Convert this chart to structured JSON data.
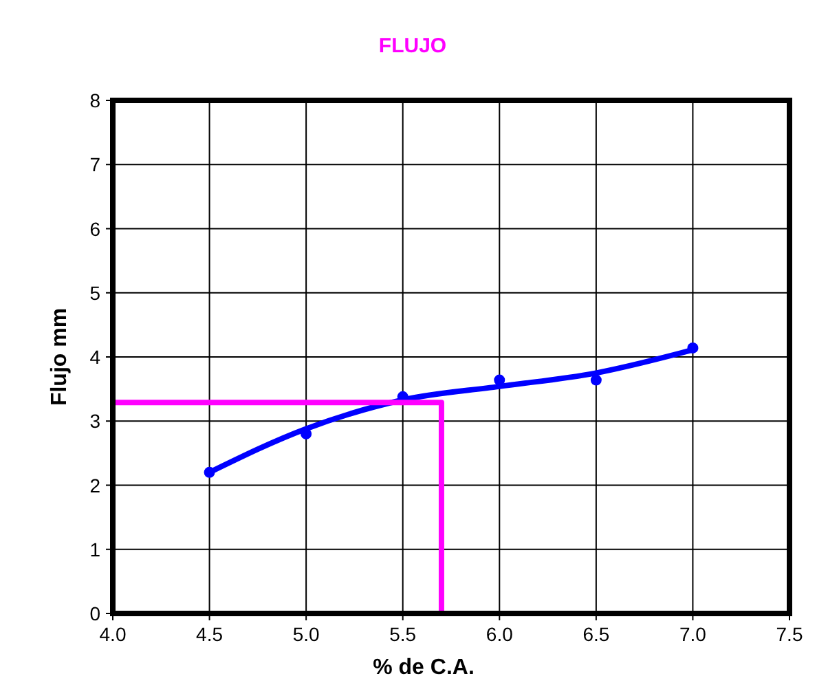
{
  "chart_data": {
    "type": "scatter",
    "title": "FLUJO",
    "xlabel": "% de C.A.",
    "ylabel": "Flujo  mm",
    "xlim": [
      4.0,
      7.5
    ],
    "xticks": [
      {
        "value": 4,
        "label": "4.0"
      },
      {
        "value": 4.5,
        "label": "4.5"
      },
      {
        "value": 5,
        "label": "5.0"
      },
      {
        "value": 5.5,
        "label": "5.5"
      },
      {
        "value": 6,
        "label": "6.0"
      },
      {
        "value": 6.5,
        "label": "6.5"
      },
      {
        "value": 7,
        "label": "7.0"
      },
      {
        "value": 7.5,
        "label": "7.5"
      }
    ],
    "ylim": [
      0,
      8
    ],
    "yticks": [
      0,
      1,
      2,
      3,
      4,
      5,
      6,
      7,
      8
    ],
    "grid": true,
    "series": [
      {
        "type": "line",
        "color": "#0000ff",
        "marker": "none",
        "x": [
          4.5,
          5.0,
          5.5,
          6.0,
          6.5,
          7.0
        ],
        "values": [
          2.2,
          2.88,
          3.33,
          3.54,
          3.75,
          4.11
        ]
      },
      {
        "color": "#0000ff",
        "marker": "circle",
        "x": [
          4.5,
          5.0,
          5.5,
          6.0,
          6.5,
          7.0
        ],
        "values": [
          2.2,
          2.8,
          3.38,
          3.64,
          3.64,
          4.14
        ]
      },
      {
        "type": "line",
        "color": "#ff00ff",
        "marker": "none",
        "x": [
          4.0,
          5.7,
          5.7
        ],
        "values": [
          3.29,
          3.29,
          0
        ]
      }
    ]
  }
}
